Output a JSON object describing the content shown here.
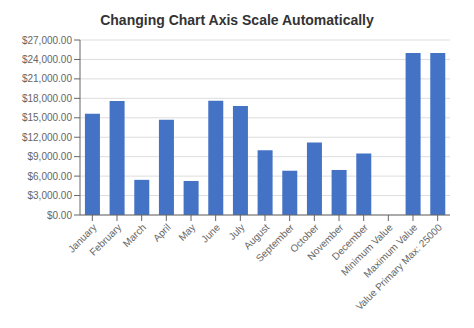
{
  "chart_data": {
    "type": "bar",
    "title": "Changing Chart Axis Scale Automatically",
    "categories": [
      "January",
      "February",
      "March",
      "April",
      "May",
      "June",
      "July",
      "August",
      "September",
      "October",
      "November",
      "December",
      "Minimum Value",
      "Maximum Value",
      "Value Primary Max: 25000"
    ],
    "values": [
      15639,
      17575,
      5424,
      14713,
      5251,
      17641,
      16825,
      10000,
      6832,
      11167,
      6949,
      9491,
      0,
      25000,
      25000
    ],
    "color": "#4472C4",
    "ylim": [
      0,
      27000
    ],
    "yticks": [
      {
        "value": 0,
        "label": "$0.00"
      },
      {
        "value": 3000,
        "label": "$3,000.00"
      },
      {
        "value": 6000,
        "label": "$6,000.00"
      },
      {
        "value": 9000,
        "label": "$9,000.00"
      },
      {
        "value": 12000,
        "label": "$12,000.00"
      },
      {
        "value": 15000,
        "label": "$15,000.00"
      },
      {
        "value": 18000,
        "label": "$18,000.00"
      },
      {
        "value": 21000,
        "label": "$21,000.00"
      },
      {
        "value": 24000,
        "label": "$24,000.00"
      },
      {
        "value": 27000,
        "label": "$27,000.00"
      }
    ],
    "grid": true
  }
}
